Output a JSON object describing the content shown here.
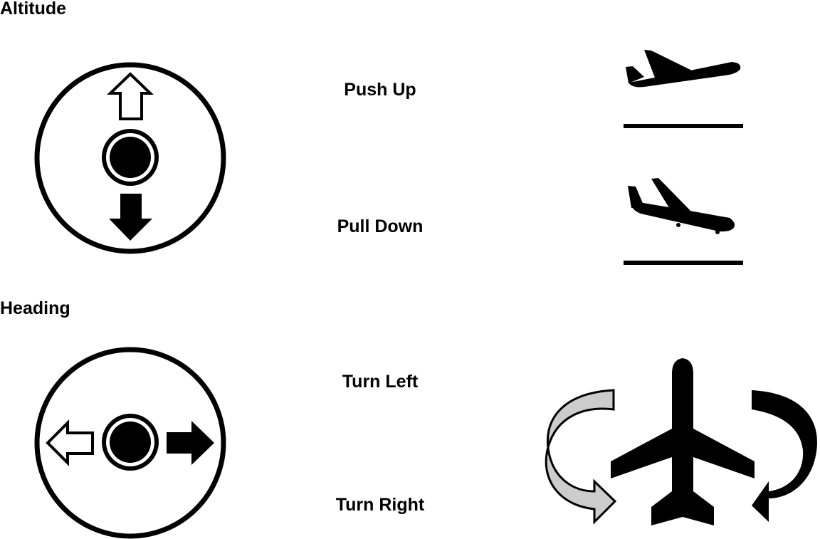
{
  "altitude": {
    "heading": "Altitude",
    "push_up_label": "Push Up",
    "pull_down_label": "Pull Down"
  },
  "heading_section": {
    "heading": "Heading",
    "turn_left_label": "Turn Left",
    "turn_right_label": "Turn Right"
  },
  "icons": {
    "altitude_joystick": "joystick-up-down-icon",
    "heading_joystick": "joystick-left-right-icon",
    "takeoff": "airplane-takeoff-icon",
    "landing": "airplane-landing-icon",
    "turn": "airplane-turn-icon"
  },
  "colors": {
    "ink": "#000000",
    "paper": "#ffffff",
    "left_arrow_fill": "#cccccc"
  }
}
